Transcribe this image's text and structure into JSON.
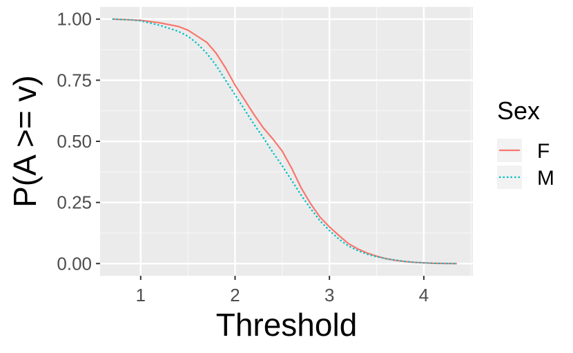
{
  "chart_data": {
    "type": "line",
    "title": "",
    "xlabel": "Threshold",
    "ylabel": "P(A >= v)",
    "xlim": [
      0.57,
      4.52
    ],
    "ylim": [
      -0.05,
      1.05
    ],
    "x_ticks": [
      1,
      2,
      3,
      4
    ],
    "x_tick_labels": [
      "1",
      "2",
      "3",
      "4"
    ],
    "y_ticks": [
      0,
      0.25,
      0.5,
      0.75,
      1.0
    ],
    "y_tick_labels": [
      "0.00",
      "0.25",
      "0.50",
      "0.75",
      "1.00"
    ],
    "grid": true,
    "legend": {
      "title": "Sex",
      "placement": "right"
    },
    "series": [
      {
        "name": "F",
        "color": "#F8766D",
        "dash": "solid",
        "points": [
          [
            0.7,
            1.0
          ],
          [
            0.9,
            0.997
          ],
          [
            1.0,
            0.995
          ],
          [
            1.2,
            0.985
          ],
          [
            1.4,
            0.97
          ],
          [
            1.5,
            0.955
          ],
          [
            1.6,
            0.93
          ],
          [
            1.7,
            0.905
          ],
          [
            1.8,
            0.86
          ],
          [
            1.9,
            0.8
          ],
          [
            2.0,
            0.73
          ],
          [
            2.1,
            0.67
          ],
          [
            2.2,
            0.61
          ],
          [
            2.3,
            0.555
          ],
          [
            2.4,
            0.51
          ],
          [
            2.5,
            0.46
          ],
          [
            2.6,
            0.39
          ],
          [
            2.7,
            0.31
          ],
          [
            2.8,
            0.245
          ],
          [
            2.9,
            0.19
          ],
          [
            3.0,
            0.15
          ],
          [
            3.1,
            0.115
          ],
          [
            3.2,
            0.082
          ],
          [
            3.3,
            0.06
          ],
          [
            3.4,
            0.043
          ],
          [
            3.5,
            0.03
          ],
          [
            3.6,
            0.02
          ],
          [
            3.7,
            0.013
          ],
          [
            3.8,
            0.008
          ],
          [
            3.9,
            0.005
          ],
          [
            4.0,
            0.003
          ],
          [
            4.1,
            0.001
          ],
          [
            4.35,
            0.0
          ]
        ]
      },
      {
        "name": "M",
        "color": "#00BFC4",
        "dash": "dotted",
        "points": [
          [
            0.7,
            1.0
          ],
          [
            0.9,
            0.997
          ],
          [
            1.0,
            0.993
          ],
          [
            1.2,
            0.975
          ],
          [
            1.4,
            0.95
          ],
          [
            1.5,
            0.93
          ],
          [
            1.6,
            0.9
          ],
          [
            1.7,
            0.86
          ],
          [
            1.8,
            0.81
          ],
          [
            1.9,
            0.75
          ],
          [
            2.0,
            0.69
          ],
          [
            2.1,
            0.63
          ],
          [
            2.2,
            0.57
          ],
          [
            2.3,
            0.515
          ],
          [
            2.4,
            0.455
          ],
          [
            2.5,
            0.4
          ],
          [
            2.6,
            0.34
          ],
          [
            2.7,
            0.28
          ],
          [
            2.8,
            0.225
          ],
          [
            2.9,
            0.175
          ],
          [
            3.0,
            0.135
          ],
          [
            3.1,
            0.1
          ],
          [
            3.2,
            0.072
          ],
          [
            3.3,
            0.053
          ],
          [
            3.4,
            0.038
          ],
          [
            3.5,
            0.028
          ],
          [
            3.6,
            0.02
          ],
          [
            3.7,
            0.014
          ],
          [
            3.8,
            0.009
          ],
          [
            3.9,
            0.005
          ],
          [
            4.0,
            0.003
          ],
          [
            4.1,
            0.001
          ],
          [
            4.35,
            0.0
          ]
        ]
      }
    ]
  }
}
